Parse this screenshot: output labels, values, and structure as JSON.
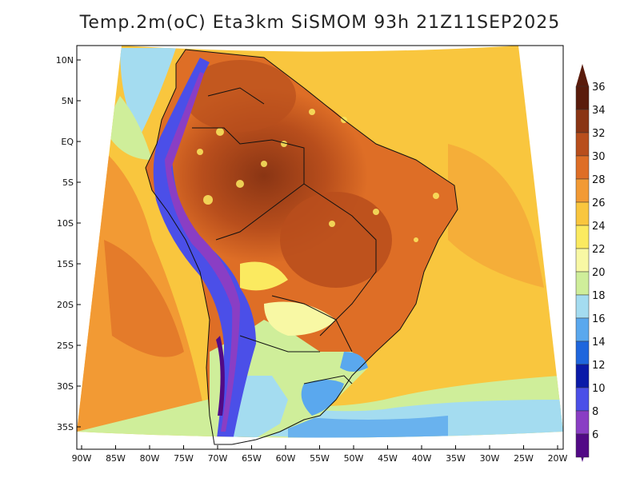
{
  "title": "Temp.2m(oC) Eta3km SiSMOM 93h 21Z11SEP2025",
  "axes": {
    "lat_labels": [
      "10N",
      "5N",
      "EQ",
      "5S",
      "10S",
      "15S",
      "20S",
      "25S",
      "30S",
      "35S"
    ],
    "lon_labels": [
      "90W",
      "85W",
      "80W",
      "75W",
      "70W",
      "65W",
      "60W",
      "55W",
      "50W",
      "45W",
      "40W",
      "35W",
      "30W",
      "25W",
      "20W"
    ]
  },
  "colorbar": {
    "labels": [
      "36",
      "34",
      "32",
      "30",
      "28",
      "26",
      "24",
      "22",
      "20",
      "18",
      "16",
      "14",
      "12",
      "10",
      "8",
      "6"
    ],
    "colors": [
      "#5a1c0c",
      "#8a3514",
      "#b84e1c",
      "#de6e26",
      "#f29a34",
      "#f9c63e",
      "#fbea60",
      "#f8f8a4",
      "#cfee9a",
      "#a4dcf0",
      "#5aa8ee",
      "#1f66dd",
      "#0a1aa8",
      "#4b4fe8",
      "#8a3ec4",
      "#520a86"
    ],
    "top_color": "#5a1c0c",
    "bottom_color": "#520a86"
  }
}
